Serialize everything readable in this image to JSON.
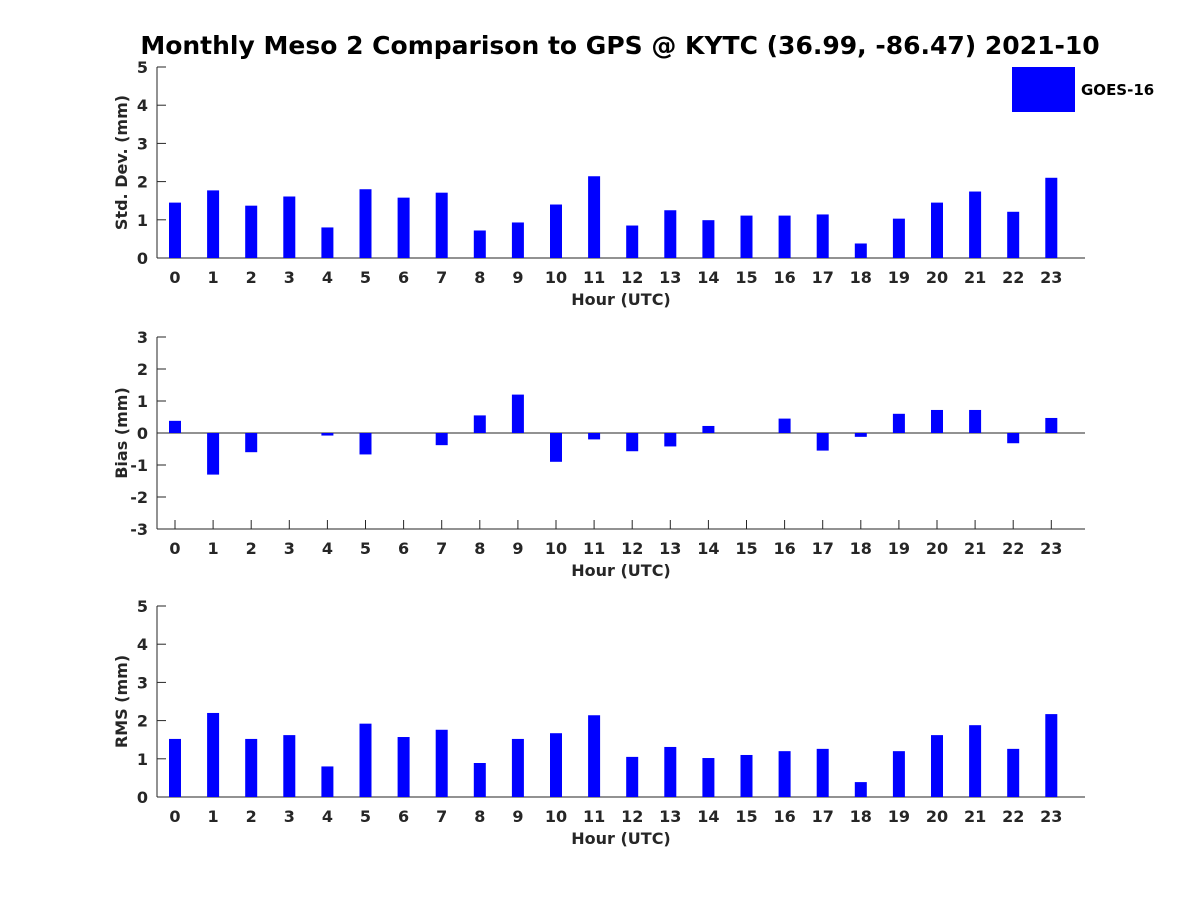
{
  "title": "Monthly Meso 2 Comparison to GPS @ KYTC (36.99, -86.47) 2021-10",
  "bar_color": "#0000ff",
  "legend": {
    "label": "GOES-16"
  },
  "chart_data": [
    {
      "type": "bar",
      "xlabel": "Hour (UTC)",
      "ylabel": "Std. Dev. (mm)",
      "ylim": [
        0,
        5
      ],
      "yticks": [
        0,
        1,
        2,
        3,
        4,
        5
      ],
      "categories": [
        "0",
        "1",
        "2",
        "3",
        "4",
        "5",
        "6",
        "7",
        "8",
        "9",
        "10",
        "11",
        "12",
        "13",
        "14",
        "15",
        "16",
        "17",
        "18",
        "19",
        "20",
        "21",
        "22",
        "23"
      ],
      "series": [
        {
          "name": "GOES-16",
          "values": [
            1.45,
            1.77,
            1.37,
            1.61,
            0.8,
            1.8,
            1.58,
            1.71,
            0.72,
            0.93,
            1.4,
            2.14,
            0.85,
            1.25,
            0.99,
            1.11,
            1.11,
            1.14,
            0.38,
            1.03,
            1.45,
            1.74,
            1.21,
            2.1
          ]
        }
      ]
    },
    {
      "type": "bar",
      "xlabel": "Hour (UTC)",
      "ylabel": "Bias (mm)",
      "ylim": [
        -3,
        3
      ],
      "yticks": [
        -3,
        -2,
        -1,
        0,
        1,
        2,
        3
      ],
      "categories": [
        "0",
        "1",
        "2",
        "3",
        "4",
        "5",
        "6",
        "7",
        "8",
        "9",
        "10",
        "11",
        "12",
        "13",
        "14",
        "15",
        "16",
        "17",
        "18",
        "19",
        "20",
        "21",
        "22",
        "23"
      ],
      "series": [
        {
          "name": "GOES-16",
          "values": [
            0.38,
            -1.3,
            -0.6,
            0.0,
            -0.08,
            -0.67,
            0.0,
            -0.38,
            0.55,
            1.2,
            -0.9,
            -0.2,
            -0.57,
            -0.42,
            0.22,
            0.0,
            0.45,
            -0.55,
            -0.12,
            0.6,
            0.72,
            0.72,
            -0.32,
            0.47
          ]
        }
      ]
    },
    {
      "type": "bar",
      "xlabel": "Hour (UTC)",
      "ylabel": "RMS (mm)",
      "ylim": [
        0,
        5
      ],
      "yticks": [
        0,
        1,
        2,
        3,
        4,
        5
      ],
      "categories": [
        "0",
        "1",
        "2",
        "3",
        "4",
        "5",
        "6",
        "7",
        "8",
        "9",
        "10",
        "11",
        "12",
        "13",
        "14",
        "15",
        "16",
        "17",
        "18",
        "19",
        "20",
        "21",
        "22",
        "23"
      ],
      "series": [
        {
          "name": "GOES-16",
          "values": [
            1.52,
            2.2,
            1.52,
            1.62,
            0.8,
            1.92,
            1.57,
            1.76,
            0.89,
            1.52,
            1.67,
            2.14,
            1.05,
            1.31,
            1.02,
            1.1,
            1.2,
            1.26,
            0.39,
            1.2,
            1.62,
            1.88,
            1.26,
            2.17
          ]
        }
      ]
    }
  ]
}
